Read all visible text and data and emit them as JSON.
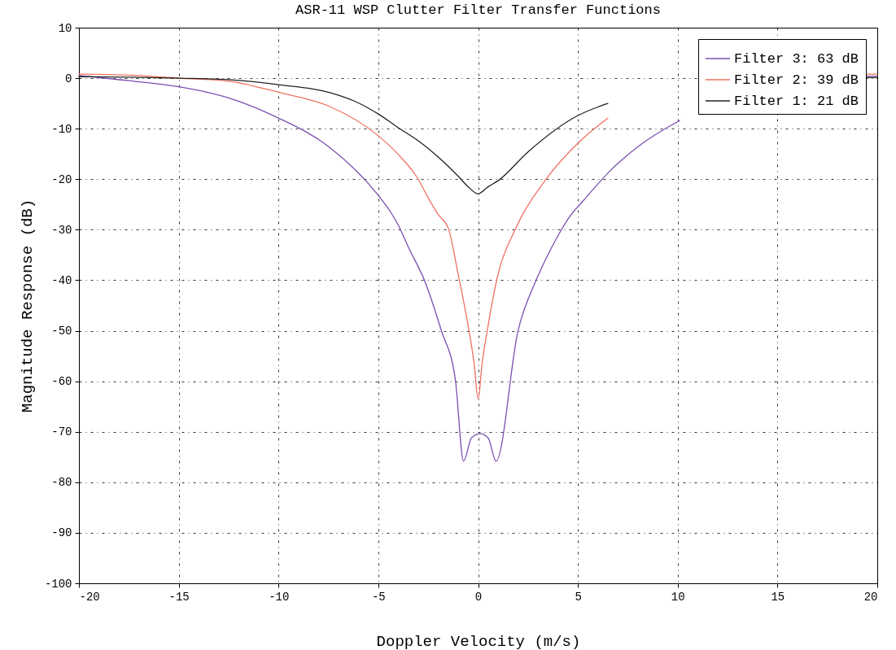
{
  "chart_data": {
    "type": "line",
    "title": "ASR-11 WSP Clutter Filter Transfer Functions",
    "xlabel": "Doppler Velocity (m/s)",
    "ylabel": "Magnitude Response (dB)",
    "xlim": [
      -20,
      20
    ],
    "xticks": [
      -20,
      -15,
      -10,
      -5,
      0,
      5,
      10,
      15,
      20
    ],
    "ylim": [
      -100,
      10
    ],
    "yticks": [
      -100,
      -90,
      -80,
      -70,
      -60,
      -50,
      -40,
      -30,
      -20,
      -10,
      0,
      10
    ],
    "grid": true,
    "legend": "top right",
    "marker": "none",
    "line_style": "solid",
    "series": [
      {
        "name": "Filter 3: 63 dB",
        "color": "#7b4fb0",
        "x": [
          -20,
          -17.5,
          -15,
          -12.5,
          -10,
          -7.5,
          -5,
          -4.4,
          -4,
          -3.5,
          -2.65,
          -1.84,
          -1.14,
          -0.73,
          -0.33,
          0.1,
          0.5,
          0.9,
          2.0,
          2.86,
          3.2,
          4.16,
          4.57,
          5.26,
          6.6,
          8.2,
          10.1,
          15,
          19.4,
          20
        ],
        "values": [
          0.5,
          -0.5,
          -1.7,
          -3.9,
          -7.9,
          -13.5,
          -23.2,
          -26.4,
          -29.1,
          -33.4,
          -40.4,
          -50,
          -59.7,
          -75.8,
          -71.2,
          -70.4,
          -71.2,
          -75.8,
          -50,
          -40.4,
          -37.4,
          -30.1,
          -27.5,
          -24.3,
          -18.4,
          -13,
          -8.4,
          null,
          0.4,
          0.4
        ]
      },
      {
        "name": "Filter 2: 39 dB",
        "color": "#f07060",
        "x": [
          -20,
          -17.5,
          -15,
          -12.5,
          -10,
          -7.5,
          -5,
          -4,
          -3,
          -2.5,
          -2,
          -1.5,
          -1,
          -0.5,
          -0.2,
          0,
          0.2,
          0.5,
          1,
          1.84,
          3.35,
          5.26,
          6.5,
          15,
          19.4,
          20
        ],
        "values": [
          0.8,
          0.6,
          0,
          -0.6,
          -2.8,
          -5.5,
          -11.4,
          -15.1,
          -20,
          -23.7,
          -27,
          -29.6,
          -38.8,
          -49,
          -56.5,
          -63.5,
          -56.5,
          -49,
          -38.8,
          -30.1,
          -20.3,
          -11.9,
          -7.9,
          null,
          0.8,
          0.8
        ]
      },
      {
        "name": "Filter 1: 21 dB",
        "color": "#222222",
        "x": [
          -20,
          -17.5,
          -15,
          -12.5,
          -10,
          -7.5,
          -6,
          -5,
          -4,
          -3,
          -2,
          -1,
          -0.5,
          0,
          0.5,
          1,
          2.5,
          5,
          6,
          6.5,
          15,
          19.4,
          20
        ],
        "values": [
          0.3,
          0.2,
          0,
          -0.3,
          -1.3,
          -2.8,
          -4.9,
          -7.1,
          -9.8,
          -12.4,
          -15.6,
          -19.4,
          -21.5,
          -22.9,
          -21.5,
          -20.3,
          -14.6,
          -7.4,
          -5.7,
          -5,
          null,
          0.1,
          0.1
        ]
      }
    ]
  }
}
